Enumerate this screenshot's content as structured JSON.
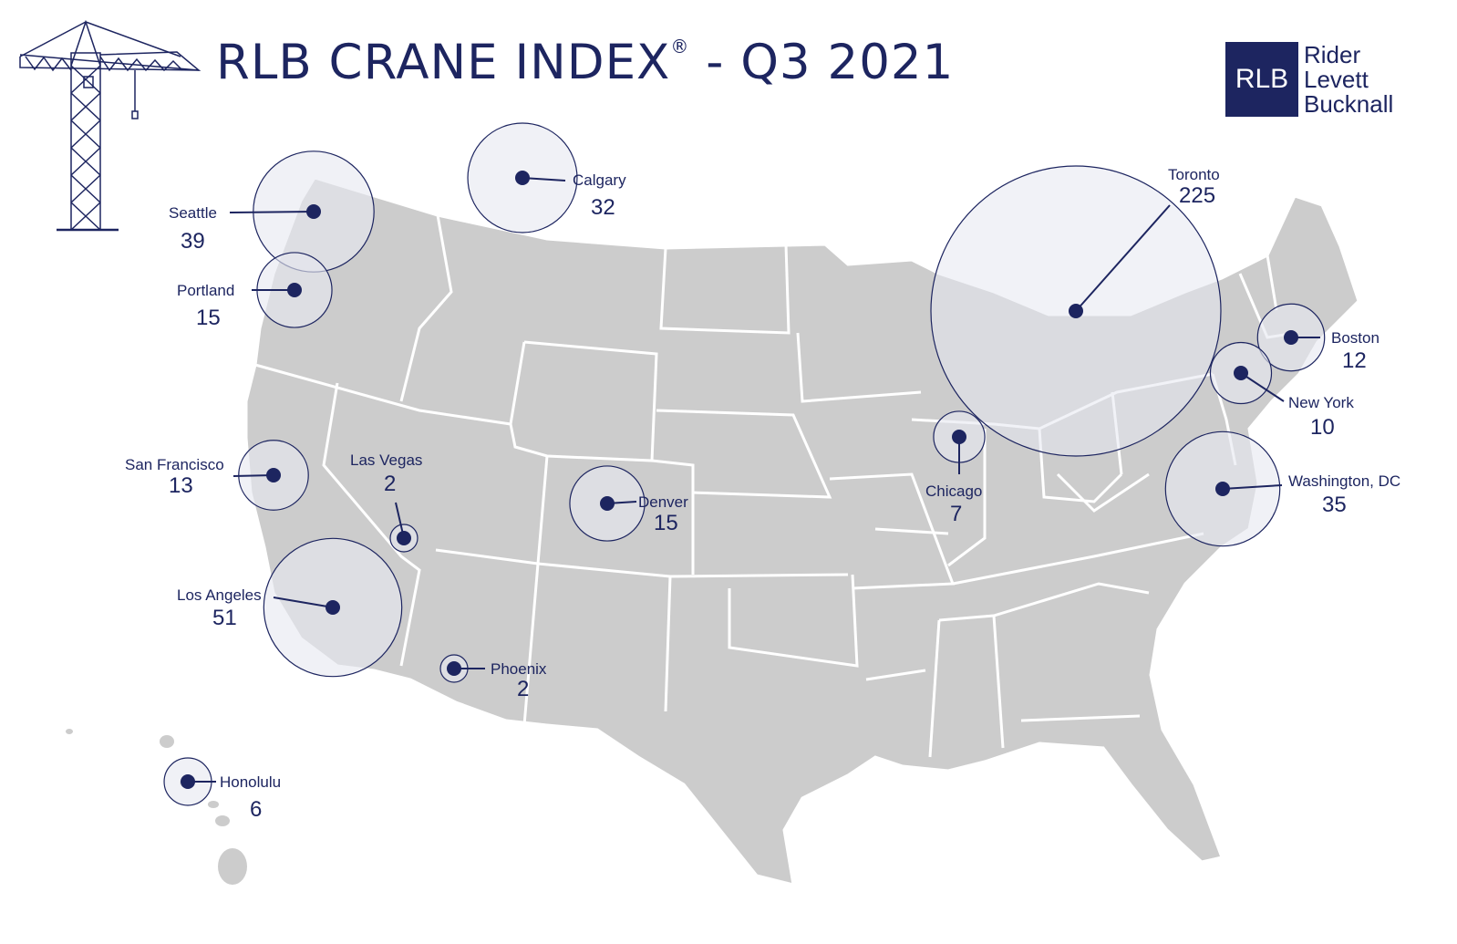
{
  "header": {
    "title_main": "RLB CRANE INDEX",
    "title_reg": "®",
    "title_suffix": " - Q3 2021"
  },
  "logo": {
    "abbrev": "RLB",
    "words": [
      "Rider",
      "Levett",
      "Bucknall"
    ]
  },
  "colors": {
    "accent": "#1d2560",
    "land": "#cccccc",
    "bubble_fill": "#e6e8f1",
    "state_border": "#ffffff"
  },
  "icons": {
    "crane": "crane-icon"
  },
  "chart_data": {
    "type": "bubble-map",
    "title": "RLB CRANE INDEX® - Q3 2021",
    "series": [
      {
        "points": [
          {
            "city": "Seattle",
            "count": 39
          },
          {
            "city": "Calgary",
            "count": 32
          },
          {
            "city": "Portland",
            "count": 15
          },
          {
            "city": "San Francisco",
            "count": 13
          },
          {
            "city": "Las Vegas",
            "count": 2
          },
          {
            "city": "Denver",
            "count": 15
          },
          {
            "city": "Los Angeles",
            "count": 51
          },
          {
            "city": "Phoenix",
            "count": 2
          },
          {
            "city": "Honolulu",
            "count": 6
          },
          {
            "city": "Chicago",
            "count": 7
          },
          {
            "city": "Toronto",
            "count": 225
          },
          {
            "city": "Boston",
            "count": 12
          },
          {
            "city": "New York",
            "count": 10
          },
          {
            "city": "Washington, DC",
            "count": 35
          }
        ]
      }
    ]
  }
}
